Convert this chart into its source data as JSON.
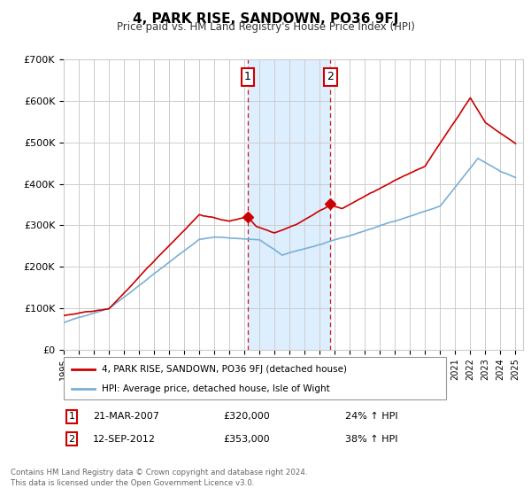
{
  "title": "4, PARK RISE, SANDOWN, PO36 9FJ",
  "subtitle": "Price paid vs. HM Land Registry's House Price Index (HPI)",
  "ylabel_ticks": [
    "£0",
    "£100K",
    "£200K",
    "£300K",
    "£400K",
    "£500K",
    "£600K",
    "£700K"
  ],
  "ylim": [
    0,
    700000
  ],
  "xlim_start": 1995.0,
  "xlim_end": 2025.5,
  "sale1_date": 2007.22,
  "sale1_price": 320000,
  "sale1_label": "1",
  "sale1_hpi_pct": "24% ↑ HPI",
  "sale1_date_str": "21-MAR-2007",
  "sale2_date": 2012.71,
  "sale2_price": 353000,
  "sale2_label": "2",
  "sale2_hpi_pct": "38% ↑ HPI",
  "sale2_date_str": "12-SEP-2012",
  "legend_line1": "4, PARK RISE, SANDOWN, PO36 9FJ (detached house)",
  "legend_line2": "HPI: Average price, detached house, Isle of Wight",
  "footer1": "Contains HM Land Registry data © Crown copyright and database right 2024.",
  "footer2": "This data is licensed under the Open Government Licence v3.0.",
  "red_color": "#cc0000",
  "blue_color": "#7ab0d4",
  "shading_color": "#ddeeff",
  "grid_color": "#cccccc",
  "background_color": "#ffffff"
}
